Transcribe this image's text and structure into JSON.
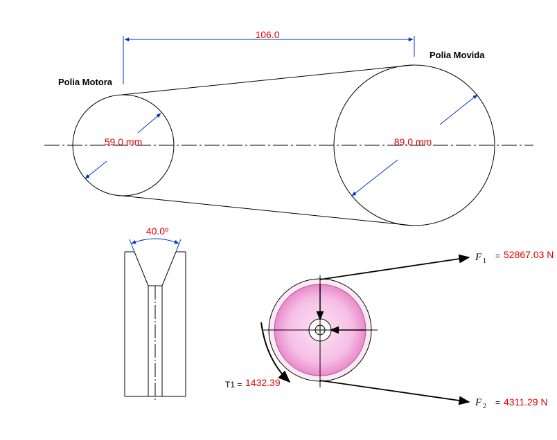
{
  "top_view": {
    "center_distance": "106.0",
    "driver_label": "Polia Motora",
    "driven_label": "Polia Movida",
    "driver_diameter": "59.0 mm",
    "driven_diameter": "89.0 mm"
  },
  "groove": {
    "angle": "40.0º"
  },
  "forces": {
    "f1_symbol": "F",
    "f1_sub": "1",
    "f1_eq": "=",
    "f1_value": "52867.03 N",
    "f2_symbol": "F",
    "f2_sub": "2",
    "f2_eq": "=",
    "f2_value": "4311.29 N",
    "torque_label": "T1 =",
    "torque_value": "1432.39"
  },
  "colors": {
    "dimension": "#0033cc",
    "value_text": "#e00000",
    "pulley_fill": "#f7b8e4",
    "pulley_inner": "#f3a3d8"
  }
}
